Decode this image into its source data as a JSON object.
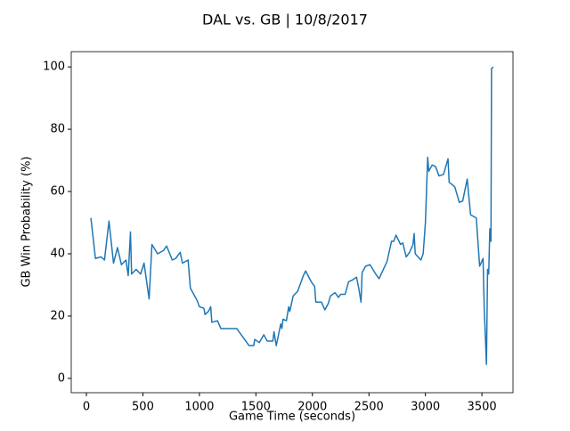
{
  "chart_data": {
    "type": "line",
    "title": "DAL vs. GB | 10/8/2017",
    "x_label": "Game Time (seconds)",
    "y_label": "GB Win Probability (%)",
    "x": [
      40,
      80,
      130,
      160,
      200,
      240,
      275,
      310,
      350,
      370,
      390,
      400,
      440,
      480,
      510,
      555,
      580,
      630,
      680,
      710,
      760,
      790,
      830,
      850,
      900,
      920,
      980,
      1000,
      1040,
      1050,
      1080,
      1100,
      1110,
      1160,
      1190,
      1330,
      1440,
      1480,
      1490,
      1530,
      1570,
      1600,
      1650,
      1660,
      1680,
      1720,
      1730,
      1740,
      1770,
      1790,
      1800,
      1830,
      1870,
      1920,
      1940,
      1990,
      2020,
      2030,
      2080,
      2110,
      2140,
      2160,
      2200,
      2230,
      2250,
      2290,
      2320,
      2350,
      2390,
      2410,
      2430,
      2440,
      2470,
      2510,
      2560,
      2590,
      2660,
      2700,
      2720,
      2740,
      2780,
      2800,
      2830,
      2860,
      2890,
      2900,
      2910,
      2960,
      2980,
      3000,
      3020,
      3030,
      3060,
      3090,
      3120,
      3160,
      3200,
      3210,
      3260,
      3300,
      3330,
      3370,
      3380,
      3400,
      3450,
      3480,
      3510,
      3520,
      3540,
      3550,
      3560,
      3570,
      3580,
      3585,
      3600
    ],
    "series": [
      {
        "name": "GB",
        "color": "#1f77b4",
        "values": [
          51.5,
          38.5,
          39,
          38,
          50.5,
          37,
          42,
          36.5,
          38,
          33,
          47,
          33.5,
          35,
          33.5,
          37,
          25.5,
          43,
          40,
          41,
          42.5,
          38,
          38.5,
          40.5,
          37,
          38,
          29,
          25,
          23,
          22.5,
          20.5,
          21.5,
          23,
          18,
          18.5,
          16,
          16,
          10.5,
          10.5,
          12.5,
          11.5,
          14,
          12,
          12,
          15,
          10.5,
          17.5,
          16,
          19,
          18.5,
          23,
          21.5,
          26.5,
          28,
          33,
          34.5,
          31,
          29.5,
          24.5,
          24.5,
          22,
          24,
          26.5,
          27.5,
          26,
          27,
          27,
          31,
          31.5,
          32.5,
          29,
          24.5,
          34,
          36,
          36.5,
          33.5,
          32,
          37.5,
          44,
          44,
          46,
          43,
          43.5,
          39,
          40.5,
          43,
          46.5,
          40,
          38,
          40,
          50,
          71,
          66.5,
          68.5,
          68,
          65,
          65.5,
          70.5,
          63,
          61.5,
          56.5,
          57,
          64,
          60,
          52.5,
          51.5,
          36,
          38.5,
          23,
          4.5,
          35,
          33.5,
          48,
          44,
          99.5,
          100
        ]
      }
    ],
    "xlim": [
      -134,
      3775
    ],
    "ylim": [
      -4.6,
      104.9
    ],
    "xticks": [
      0,
      500,
      1000,
      1500,
      2000,
      2500,
      3000,
      3500
    ],
    "yticks": [
      0,
      20,
      40,
      60,
      80,
      100
    ]
  }
}
